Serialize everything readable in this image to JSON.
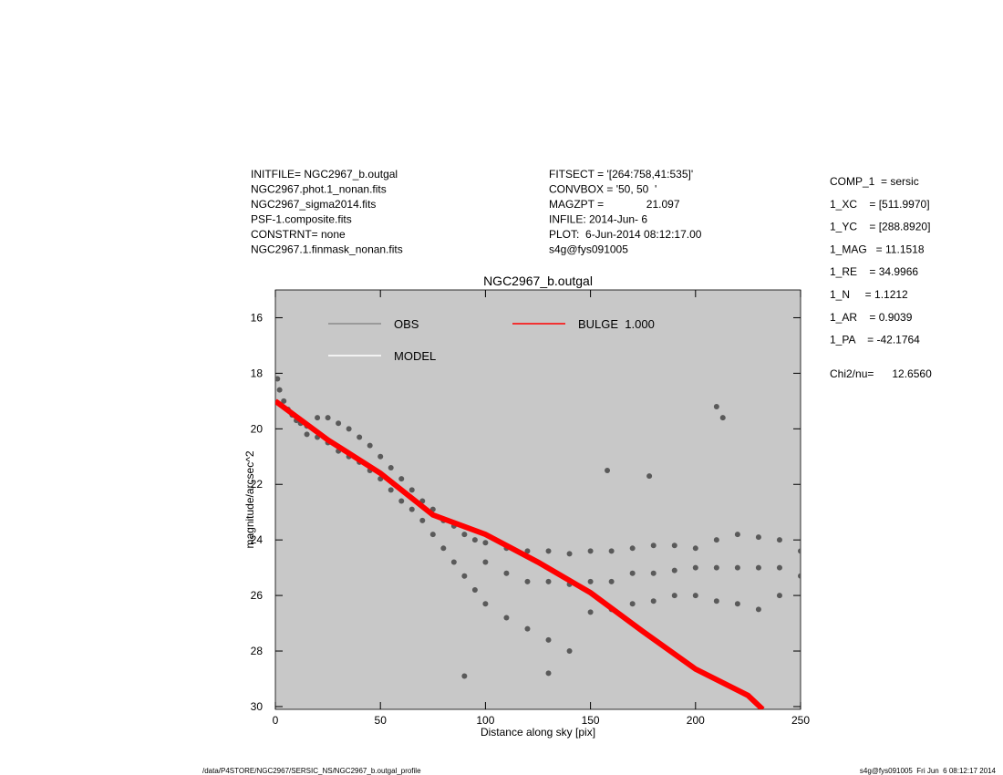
{
  "header": {
    "left": [
      "INITFILE= NGC2967_b.outgal",
      "NGC2967.phot.1_nonan.fits",
      "NGC2967_sigma2014.fits",
      "PSF-1.composite.fits",
      "CONSTRNT= none",
      "NGC2967.1.finmask_nonan.fits"
    ],
    "middle": [
      "FITSECT = '[264:758,41:535]'",
      "CONVBOX = '50, 50  '",
      "MAGZPT =              21.097",
      "INFILE: 2014-Jun- 6",
      "PLOT:  6-Jun-2014 08:12:17.00",
      "s4g@fys091005"
    ],
    "right": [
      "COMP_1  = sersic",
      "1_XC    = [511.9970]",
      "1_YC    = [288.8920]",
      "1_MAG   = 11.1518",
      "1_RE    = 34.9966",
      "1_N     = 1.1212",
      "1_AR    = 0.9039",
      "1_PA    = -42.1764"
    ],
    "chi": "Chi2/nu=      12.6560"
  },
  "footer": {
    "left": "/data/P4STORE/NGC2967/SERSIC_NS/NGC2967_b.outgal_profile",
    "right": "s4g@fys091005  Fri Jun  6 08:12:17 2014"
  },
  "chart_data": {
    "type": "scatter",
    "title": "NGC2967_b.outgal",
    "xlabel": "Distance along sky [pix]",
    "ylabel": "magnitude/arcsec^2",
    "xlim": [
      0,
      250
    ],
    "ylim": [
      15,
      30.1
    ],
    "y_inverted": true,
    "xticks": [
      0,
      50,
      100,
      150,
      200,
      250
    ],
    "yticks": [
      16,
      18,
      20,
      22,
      24,
      26,
      28,
      30
    ],
    "background": "#c8c8c8",
    "series": [
      {
        "name": "OBS",
        "color": "#5a5a5a",
        "style": "points",
        "x": [
          1,
          2,
          4,
          6,
          8,
          10,
          12,
          15,
          15,
          20,
          20,
          25,
          25,
          30,
          30,
          35,
          35,
          40,
          40,
          45,
          45,
          50,
          50,
          55,
          55,
          60,
          60,
          65,
          65,
          70,
          70,
          75,
          75,
          80,
          80,
          85,
          85,
          90,
          90,
          95,
          95,
          100,
          100,
          100,
          110,
          110,
          110,
          120,
          120,
          120,
          130,
          130,
          130,
          140,
          140,
          140,
          150,
          150,
          150,
          160,
          160,
          160,
          170,
          170,
          170,
          180,
          180,
          180,
          190,
          190,
          190,
          200,
          200,
          200,
          210,
          210,
          210,
          220,
          220,
          220,
          230,
          230,
          230,
          240,
          240,
          240,
          250,
          250,
          158,
          213,
          210,
          178,
          130,
          90
        ],
        "values": [
          18.2,
          18.6,
          19.0,
          19.3,
          19.5,
          19.7,
          19.8,
          19.9,
          20.2,
          19.6,
          20.3,
          19.6,
          20.5,
          19.8,
          20.8,
          20.0,
          21.0,
          20.3,
          21.2,
          20.6,
          21.5,
          21.0,
          21.8,
          21.4,
          22.2,
          21.8,
          22.6,
          22.2,
          22.9,
          22.6,
          23.3,
          22.9,
          23.8,
          23.3,
          24.3,
          23.5,
          24.8,
          23.8,
          25.3,
          24.0,
          25.8,
          24.1,
          24.8,
          26.3,
          24.3,
          25.2,
          26.8,
          24.4,
          25.5,
          27.2,
          24.4,
          25.5,
          27.6,
          24.5,
          25.6,
          28.0,
          24.4,
          25.5,
          26.6,
          24.4,
          25.5,
          26.5,
          24.3,
          25.2,
          26.3,
          24.2,
          25.2,
          26.2,
          24.2,
          25.1,
          26.0,
          24.3,
          25.0,
          26.0,
          24.0,
          25.0,
          26.2,
          23.8,
          25.0,
          26.3,
          23.9,
          25.0,
          26.5,
          24.0,
          25.0,
          26.0,
          24.4,
          25.3,
          21.5,
          19.6,
          19.2,
          21.7,
          28.8,
          28.9
        ]
      },
      {
        "name": "MODEL",
        "color": "#ffffff",
        "style": "line",
        "x": [],
        "values": []
      },
      {
        "name": "BULGE  1.000",
        "color": "#ff0000",
        "style": "line",
        "x": [
          0,
          25,
          50,
          75,
          100,
          125,
          150,
          175,
          200,
          225,
          232
        ],
        "values": [
          19.0,
          20.4,
          21.6,
          23.1,
          23.8,
          24.8,
          25.9,
          27.3,
          28.65,
          29.6,
          30.1
        ]
      }
    ]
  }
}
